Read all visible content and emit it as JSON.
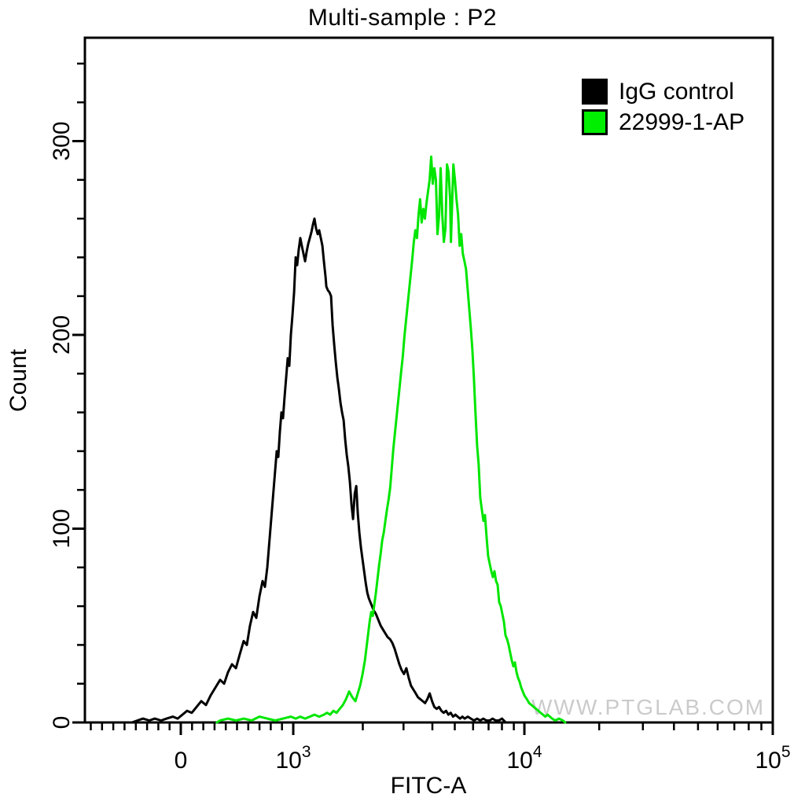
{
  "title": "Multi-sample : P2",
  "watermark": "WWW.PTGLAB.COM",
  "legend": {
    "position": "top-right",
    "items": [
      {
        "label": "IgG control",
        "color": "#000000"
      },
      {
        "label": "22999-1-AP",
        "color": "#00ee00"
      }
    ]
  },
  "chart_data": {
    "type": "line",
    "subtype": "flow-cytometry-histogram-overlay",
    "title": "Multi-sample : P2",
    "xlabel": "FITC-A",
    "ylabel": "Count",
    "grid": false,
    "legend_position": "top-right",
    "ylim": [
      0,
      354
    ],
    "y_major_ticks": [
      0,
      100,
      200,
      300
    ],
    "y_minor_step": 20,
    "x_scale": {
      "type": "biexponential",
      "log_above": 1000,
      "anchors": [
        {
          "value": -853,
          "frac": 0.0
        },
        {
          "value": 0,
          "frac": 0.1394
        },
        {
          "value": 1000,
          "frac": 0.3029
        },
        {
          "value": 10000,
          "frac": 0.6389
        },
        {
          "value": 100000,
          "frac": 1.0
        }
      ]
    },
    "x_major_ticks": [
      {
        "value": 0,
        "label": "0"
      },
      {
        "value": 1000,
        "label": "10^3"
      },
      {
        "value": 10000,
        "label": "10^4"
      },
      {
        "value": 100000,
        "label": "10^5"
      }
    ],
    "x_minor_ticks": [
      -800,
      -700,
      -600,
      -500,
      -400,
      -300,
      -200,
      -100,
      100,
      200,
      300,
      400,
      500,
      600,
      700,
      800,
      900,
      2000,
      3000,
      4000,
      5000,
      6000,
      7000,
      8000,
      9000,
      20000,
      30000,
      40000,
      50000,
      60000,
      70000,
      80000,
      90000
    ],
    "series": [
      {
        "name": "IgG control",
        "color": "#000000",
        "peak": {
          "x": 1235,
          "count": 260
        },
        "points": [
          [
            -434,
            0
          ],
          [
            -385,
            1
          ],
          [
            -336,
            2
          ],
          [
            -280,
            1
          ],
          [
            -231,
            2
          ],
          [
            -175,
            1
          ],
          [
            -126,
            2
          ],
          [
            -70,
            3
          ],
          [
            -28,
            2
          ],
          [
            14,
            4
          ],
          [
            56,
            6
          ],
          [
            98,
            5
          ],
          [
            140,
            8
          ],
          [
            182,
            11
          ],
          [
            224,
            9
          ],
          [
            266,
            14
          ],
          [
            308,
            18
          ],
          [
            350,
            22
          ],
          [
            385,
            20
          ],
          [
            420,
            26
          ],
          [
            455,
            30
          ],
          [
            490,
            28
          ],
          [
            524,
            35
          ],
          [
            559,
            42
          ],
          [
            587,
            40
          ],
          [
            615,
            50
          ],
          [
            643,
            57
          ],
          [
            671,
            54
          ],
          [
            699,
            65
          ],
          [
            727,
            73
          ],
          [
            748,
            70
          ],
          [
            769,
            80
          ],
          [
            790,
            95
          ],
          [
            811,
            110
          ],
          [
            832,
            125
          ],
          [
            853,
            140
          ],
          [
            867,
            137
          ],
          [
            881,
            150
          ],
          [
            895,
            160
          ],
          [
            909,
            157
          ],
          [
            923,
            168
          ],
          [
            937,
            178
          ],
          [
            951,
            188
          ],
          [
            965,
            184
          ],
          [
            979,
            200
          ],
          [
            993,
            210
          ],
          [
            1008,
            222
          ],
          [
            1024,
            240
          ],
          [
            1040,
            236
          ],
          [
            1056,
            244
          ],
          [
            1073,
            250
          ],
          [
            1089,
            246
          ],
          [
            1107,
            242
          ],
          [
            1125,
            238
          ],
          [
            1143,
            243
          ],
          [
            1161,
            247
          ],
          [
            1179,
            250
          ],
          [
            1198,
            253
          ],
          [
            1217,
            257
          ],
          [
            1235,
            260
          ],
          [
            1255,
            255
          ],
          [
            1275,
            252
          ],
          [
            1295,
            254
          ],
          [
            1316,
            250
          ],
          [
            1337,
            246
          ],
          [
            1357,
            238
          ],
          [
            1379,
            230
          ],
          [
            1390,
            225
          ],
          [
            1412,
            223
          ],
          [
            1434,
            222
          ],
          [
            1457,
            220
          ],
          [
            1480,
            205
          ],
          [
            1503,
            195
          ],
          [
            1527,
            186
          ],
          [
            1551,
            178
          ],
          [
            1576,
            172
          ],
          [
            1601,
            165
          ],
          [
            1626,
            160
          ],
          [
            1652,
            156
          ],
          [
            1678,
            146
          ],
          [
            1704,
            138
          ],
          [
            1731,
            132
          ],
          [
            1759,
            124
          ],
          [
            1787,
            112
          ],
          [
            1815,
            105
          ],
          [
            1844,
            118
          ],
          [
            1873,
            122
          ],
          [
            1902,
            108
          ],
          [
            1932,
            98
          ],
          [
            1963,
            90
          ],
          [
            1994,
            84
          ],
          [
            2026,
            78
          ],
          [
            2058,
            72
          ],
          [
            2090,
            67
          ],
          [
            2123,
            64
          ],
          [
            2157,
            62
          ],
          [
            2191,
            60
          ],
          [
            2226,
            58
          ],
          [
            2279,
            56
          ],
          [
            2333,
            53
          ],
          [
            2388,
            50
          ],
          [
            2444,
            48
          ],
          [
            2502,
            46
          ],
          [
            2561,
            44
          ],
          [
            2621,
            43
          ],
          [
            2683,
            41
          ],
          [
            2746,
            38
          ],
          [
            2811,
            34
          ],
          [
            2877,
            30
          ],
          [
            2945,
            27
          ],
          [
            3014,
            25
          ],
          [
            3085,
            28
          ],
          [
            3158,
            23
          ],
          [
            3232,
            19
          ],
          [
            3308,
            17
          ],
          [
            3386,
            15
          ],
          [
            3466,
            13
          ],
          [
            3548,
            12
          ],
          [
            3631,
            11
          ],
          [
            3717,
            10
          ],
          [
            3804,
            12
          ],
          [
            3894,
            15
          ],
          [
            3985,
            11
          ],
          [
            4079,
            8
          ],
          [
            4175,
            7
          ],
          [
            4273,
            8
          ],
          [
            4374,
            6
          ],
          [
            4477,
            5
          ],
          [
            4582,
            6
          ],
          [
            4690,
            4
          ],
          [
            4800,
            5
          ],
          [
            4913,
            3
          ],
          [
            5029,
            4
          ],
          [
            5147,
            3
          ],
          [
            5268,
            2
          ],
          [
            5392,
            3
          ],
          [
            5519,
            2
          ],
          [
            5692,
            3
          ],
          [
            5871,
            2
          ],
          [
            6055,
            1
          ],
          [
            6245,
            2
          ],
          [
            6441,
            1
          ],
          [
            6643,
            2
          ],
          [
            6851,
            1
          ],
          [
            7066,
            1
          ],
          [
            7288,
            2
          ],
          [
            7517,
            1
          ],
          [
            7752,
            1
          ],
          [
            7996,
            2
          ],
          [
            8309,
            0
          ]
        ]
      },
      {
        "name": "22999-1-AP",
        "color": "#00e600",
        "peak": {
          "x": 3952,
          "count": 292
        },
        "points": [
          [
            320,
            0
          ],
          [
            350,
            1
          ],
          [
            420,
            2
          ],
          [
            490,
            1
          ],
          [
            560,
            2
          ],
          [
            629,
            1
          ],
          [
            699,
            3
          ],
          [
            769,
            2
          ],
          [
            839,
            1
          ],
          [
            909,
            2
          ],
          [
            979,
            3
          ],
          [
            1024,
            2
          ],
          [
            1073,
            3
          ],
          [
            1125,
            2
          ],
          [
            1179,
            3
          ],
          [
            1235,
            4
          ],
          [
            1295,
            3
          ],
          [
            1357,
            4
          ],
          [
            1400,
            5
          ],
          [
            1445,
            4
          ],
          [
            1491,
            6
          ],
          [
            1539,
            5
          ],
          [
            1588,
            7
          ],
          [
            1639,
            9
          ],
          [
            1691,
            12
          ],
          [
            1745,
            16
          ],
          [
            1801,
            13
          ],
          [
            1858,
            11
          ],
          [
            1902,
            15
          ],
          [
            1947,
            19
          ],
          [
            1994,
            25
          ],
          [
            2042,
            32
          ],
          [
            2090,
            42
          ],
          [
            2140,
            52
          ],
          [
            2174,
            57
          ],
          [
            2208,
            55
          ],
          [
            2243,
            61
          ],
          [
            2278,
            67
          ],
          [
            2315,
            74
          ],
          [
            2351,
            81
          ],
          [
            2389,
            87
          ],
          [
            2427,
            94
          ],
          [
            2465,
            98
          ],
          [
            2504,
            104
          ],
          [
            2544,
            110
          ],
          [
            2584,
            115
          ],
          [
            2625,
            121
          ],
          [
            2667,
            131
          ],
          [
            2709,
            141
          ],
          [
            2752,
            149
          ],
          [
            2796,
            157
          ],
          [
            2840,
            165
          ],
          [
            2885,
            173
          ],
          [
            2931,
            181
          ],
          [
            2978,
            189
          ],
          [
            3025,
            199
          ],
          [
            3073,
            207
          ],
          [
            3122,
            215
          ],
          [
            3171,
            223
          ],
          [
            3221,
            231
          ],
          [
            3272,
            239
          ],
          [
            3324,
            248
          ],
          [
            3377,
            254
          ],
          [
            3430,
            250
          ],
          [
            3484,
            262
          ],
          [
            3540,
            270
          ],
          [
            3596,
            258
          ],
          [
            3653,
            265
          ],
          [
            3711,
            260
          ],
          [
            3770,
            268
          ],
          [
            3830,
            274
          ],
          [
            3890,
            280
          ],
          [
            3952,
            292
          ],
          [
            4015,
            278
          ],
          [
            4078,
            286
          ],
          [
            4143,
            280
          ],
          [
            4209,
            252
          ],
          [
            4276,
            262
          ],
          [
            4343,
            286
          ],
          [
            4412,
            262
          ],
          [
            4483,
            248
          ],
          [
            4554,
            255
          ],
          [
            4626,
            288
          ],
          [
            4700,
            284
          ],
          [
            4774,
            270
          ],
          [
            4812,
            248
          ],
          [
            4927,
            288
          ],
          [
            5005,
            280
          ],
          [
            5084,
            270
          ],
          [
            5166,
            262
          ],
          [
            5247,
            246
          ],
          [
            5331,
            252
          ],
          [
            5416,
            242
          ],
          [
            5502,
            238
          ],
          [
            5589,
            234
          ],
          [
            5678,
            224
          ],
          [
            5769,
            214
          ],
          [
            5860,
            204
          ],
          [
            5953,
            193
          ],
          [
            6048,
            178
          ],
          [
            6144,
            160
          ],
          [
            6242,
            143
          ],
          [
            6341,
            133
          ],
          [
            6441,
            116
          ],
          [
            6544,
            110
          ],
          [
            6648,
            104
          ],
          [
            6753,
            107
          ],
          [
            6861,
            96
          ],
          [
            6969,
            86
          ],
          [
            7080,
            82
          ],
          [
            7193,
            78
          ],
          [
            7306,
            75
          ],
          [
            7422,
            78
          ],
          [
            7539,
            73
          ],
          [
            7659,
            71
          ],
          [
            7780,
            62
          ],
          [
            7903,
            60
          ],
          [
            8028,
            56
          ],
          [
            8155,
            52
          ],
          [
            8284,
            45
          ],
          [
            8415,
            43
          ],
          [
            8548,
            40
          ],
          [
            8683,
            36
          ],
          [
            8820,
            32
          ],
          [
            8959,
            29
          ],
          [
            9100,
            31
          ],
          [
            9244,
            26
          ],
          [
            9389,
            23
          ],
          [
            9537,
            21
          ],
          [
            9687,
            18
          ],
          [
            9839,
            16
          ],
          [
            9994,
            14
          ],
          [
            10230,
            12
          ],
          [
            10450,
            10
          ],
          [
            10680,
            9
          ],
          [
            10910,
            8
          ],
          [
            11150,
            7
          ],
          [
            11390,
            6
          ],
          [
            11630,
            5
          ],
          [
            11880,
            4
          ],
          [
            12140,
            3
          ],
          [
            12400,
            4
          ],
          [
            12670,
            3
          ],
          [
            12940,
            2
          ],
          [
            13310,
            1
          ],
          [
            13790,
            2
          ],
          [
            14290,
            1
          ],
          [
            14590,
            0
          ]
        ]
      }
    ]
  }
}
